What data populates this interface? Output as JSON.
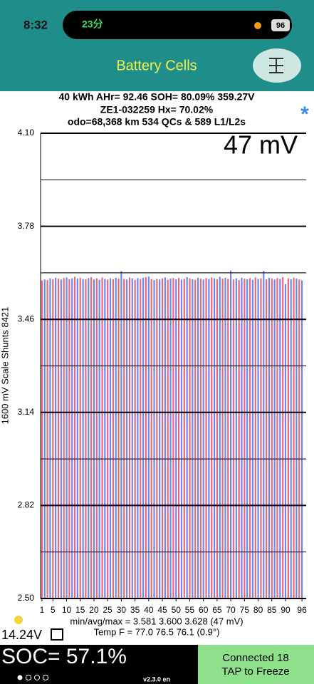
{
  "status_bar": {
    "time": "8:32",
    "call": "23分",
    "battery": "96"
  },
  "header": {
    "title": "Battery Cells"
  },
  "info": [
    "40 kWh  AHr= 92.46  SOH= 80.09%   359.27V",
    "ZE1-032259   Hx= 70.02%",
    "odo=68,368 km 534 QCs & 589 L1/L2s"
  ],
  "star": "*",
  "chart_data": {
    "type": "bar",
    "annotation": "47 mV",
    "ylabel": "1600 mV Scale   Shunts 8421",
    "x": [
      1,
      2,
      3,
      4,
      5,
      6,
      7,
      8,
      9,
      10,
      11,
      12,
      13,
      14,
      15,
      16,
      17,
      18,
      19,
      20,
      21,
      22,
      23,
      24,
      25,
      26,
      27,
      28,
      29,
      30,
      31,
      32,
      33,
      34,
      35,
      36,
      37,
      38,
      39,
      40,
      41,
      42,
      43,
      44,
      45,
      46,
      47,
      48,
      49,
      50,
      51,
      52,
      53,
      54,
      55,
      56,
      57,
      58,
      59,
      60,
      61,
      62,
      63,
      64,
      65,
      66,
      67,
      68,
      69,
      70,
      71,
      72,
      73,
      74,
      75,
      76,
      77,
      78,
      79,
      80,
      81,
      82,
      83,
      84,
      85,
      86,
      87,
      88,
      89,
      90,
      91,
      92,
      93,
      94,
      95,
      96
    ],
    "values": [
      3.594,
      3.597,
      3.595,
      3.601,
      3.598,
      3.603,
      3.6,
      3.597,
      3.602,
      3.604,
      3.598,
      3.601,
      3.606,
      3.6,
      3.603,
      3.599,
      3.598,
      3.602,
      3.605,
      3.597,
      3.601,
      3.596,
      3.604,
      3.599,
      3.597,
      3.601,
      3.598,
      3.603,
      3.6,
      3.626,
      3.599,
      3.597,
      3.604,
      3.601,
      3.596,
      3.602,
      3.599,
      3.603,
      3.605,
      3.607,
      3.598,
      3.595,
      3.599,
      3.597,
      3.601,
      3.604,
      3.596,
      3.6,
      3.602,
      3.598,
      3.603,
      3.597,
      3.599,
      3.605,
      3.601,
      3.598,
      3.596,
      3.603,
      3.6,
      3.597,
      3.602,
      3.599,
      3.604,
      3.601,
      3.598,
      3.606,
      3.6,
      3.603,
      3.599,
      3.628,
      3.597,
      3.601,
      3.595,
      3.603,
      3.6,
      3.598,
      3.602,
      3.596,
      3.604,
      3.599,
      3.601,
      3.627,
      3.598,
      3.603,
      3.6,
      3.597,
      3.602,
      3.599,
      3.605,
      3.581,
      3.601,
      3.598,
      3.603,
      3.6,
      3.597,
      3.594
    ],
    "colors": [
      "#e8687e",
      "#6f86f2"
    ],
    "xlim": [
      0.5,
      96.5
    ],
    "xticks": [
      1,
      5,
      10,
      15,
      20,
      25,
      30,
      35,
      40,
      45,
      50,
      55,
      60,
      65,
      70,
      75,
      80,
      85,
      90,
      96
    ],
    "ylim": [
      2.5,
      4.1
    ],
    "yticks": [
      {
        "value": 4.1,
        "label": "4.10"
      },
      3.78,
      3.46,
      3.14,
      2.82,
      {
        "value": 2.5,
        "label": "2.50"
      }
    ],
    "minor_yticks": [
      3.94,
      3.62,
      3.3,
      2.98,
      2.66
    ],
    "grid": true
  },
  "stats": [
    "min/avg/max = 3.581 3.600 3.628 (47 mV)",
    "Temp F = 77.0  76.5  76.1  (0.9°)"
  ],
  "footer": {
    "voltage": "14.24V",
    "soc": "SOC= 57.1%",
    "version": "v2.3.0 en",
    "connected": "Connected 18",
    "action": "TAP to Freeze"
  }
}
